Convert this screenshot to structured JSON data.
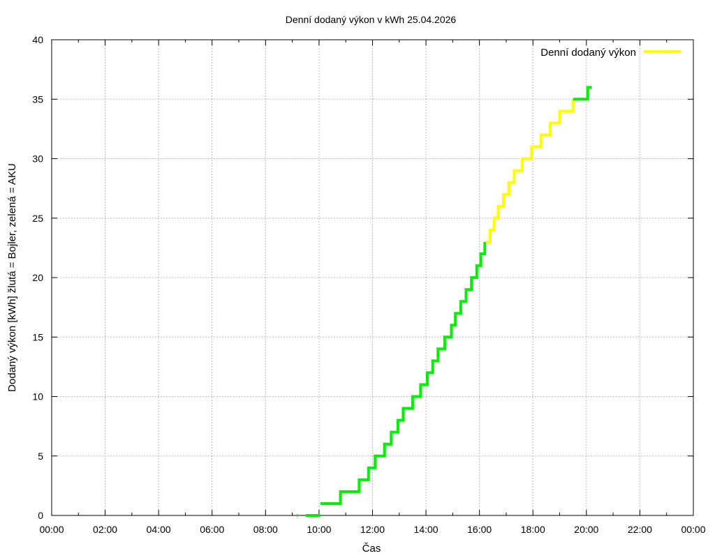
{
  "chart_data": {
    "type": "line",
    "title": "Denní dodaný výkon v kWh 25.04.2026",
    "xlabel": "Čas",
    "ylabel": "Dodaný výkon [kWh]  žlutá = Bojler, zelená = AKU",
    "xlim": [
      0,
      24
    ],
    "ylim": [
      0,
      40
    ],
    "x_ticks": [
      0,
      2,
      4,
      6,
      8,
      10,
      12,
      14,
      16,
      18,
      20,
      22,
      24
    ],
    "x_tick_labels": [
      "00:00",
      "02:00",
      "04:00",
      "06:00",
      "08:00",
      "10:00",
      "12:00",
      "14:00",
      "16:00",
      "18:00",
      "20:00",
      "22:00",
      "00:00"
    ],
    "y_ticks": [
      0,
      5,
      10,
      15,
      20,
      25,
      30,
      35,
      40
    ],
    "y_tick_labels": [
      "0",
      "5",
      "10",
      "15",
      "20",
      "25",
      "30",
      "35",
      "40"
    ],
    "grid": true,
    "legend": {
      "position": "top-right",
      "label": "Denní dodaný výkon",
      "color": "#ffff00"
    },
    "colors": {
      "bojler": "#ffff00",
      "aku": "#00ee00"
    },
    "segments": [
      {
        "color": "aku",
        "points": [
          [
            9.17,
            0
          ],
          [
            9.2,
            0
          ]
        ]
      },
      {
        "color": "aku",
        "points": [
          [
            9.5,
            0
          ],
          [
            10.05,
            0
          ]
        ]
      },
      {
        "color": "aku",
        "points": [
          [
            10.05,
            1
          ],
          [
            10.8,
            1
          ],
          [
            10.8,
            2
          ],
          [
            11.5,
            2
          ],
          [
            11.5,
            3
          ],
          [
            11.85,
            3
          ],
          [
            11.85,
            4
          ],
          [
            12.1,
            4
          ],
          [
            12.1,
            5
          ],
          [
            12.45,
            5
          ],
          [
            12.45,
            6
          ],
          [
            12.7,
            6
          ],
          [
            12.7,
            7
          ],
          [
            12.95,
            7
          ],
          [
            12.95,
            8
          ],
          [
            13.15,
            8
          ],
          [
            13.15,
            9
          ],
          [
            13.5,
            9
          ],
          [
            13.5,
            10
          ],
          [
            13.8,
            10
          ],
          [
            13.8,
            11
          ],
          [
            14.05,
            11
          ],
          [
            14.05,
            12
          ],
          [
            14.25,
            12
          ],
          [
            14.25,
            13
          ],
          [
            14.45,
            13
          ],
          [
            14.45,
            14
          ],
          [
            14.7,
            14
          ],
          [
            14.7,
            15
          ],
          [
            14.95,
            15
          ],
          [
            14.95,
            16
          ],
          [
            15.1,
            16
          ],
          [
            15.1,
            17
          ],
          [
            15.3,
            17
          ],
          [
            15.3,
            18
          ],
          [
            15.5,
            18
          ],
          [
            15.5,
            19
          ],
          [
            15.7,
            19
          ],
          [
            15.7,
            20
          ],
          [
            15.9,
            20
          ],
          [
            15.9,
            21
          ],
          [
            16.05,
            21
          ],
          [
            16.05,
            22
          ],
          [
            16.2,
            22
          ],
          [
            16.2,
            23
          ]
        ]
      },
      {
        "color": "bojler",
        "points": [
          [
            16.25,
            23
          ],
          [
            16.4,
            23
          ],
          [
            16.4,
            24
          ],
          [
            16.55,
            24
          ],
          [
            16.55,
            25
          ],
          [
            16.7,
            25
          ],
          [
            16.7,
            26
          ],
          [
            16.9,
            26
          ],
          [
            16.9,
            27
          ],
          [
            17.1,
            27
          ],
          [
            17.1,
            28
          ],
          [
            17.3,
            28
          ],
          [
            17.3,
            29
          ],
          [
            17.6,
            29
          ],
          [
            17.6,
            30
          ],
          [
            17.95,
            30
          ],
          [
            17.95,
            31
          ],
          [
            18.3,
            31
          ],
          [
            18.3,
            32
          ],
          [
            18.65,
            32
          ],
          [
            18.65,
            33
          ],
          [
            19.0,
            33
          ],
          [
            19.0,
            34
          ],
          [
            19.5,
            34
          ],
          [
            19.5,
            35
          ]
        ]
      },
      {
        "color": "aku",
        "points": [
          [
            19.5,
            35
          ],
          [
            20.05,
            35
          ],
          [
            20.05,
            36
          ],
          [
            20.2,
            36
          ]
        ]
      }
    ]
  }
}
